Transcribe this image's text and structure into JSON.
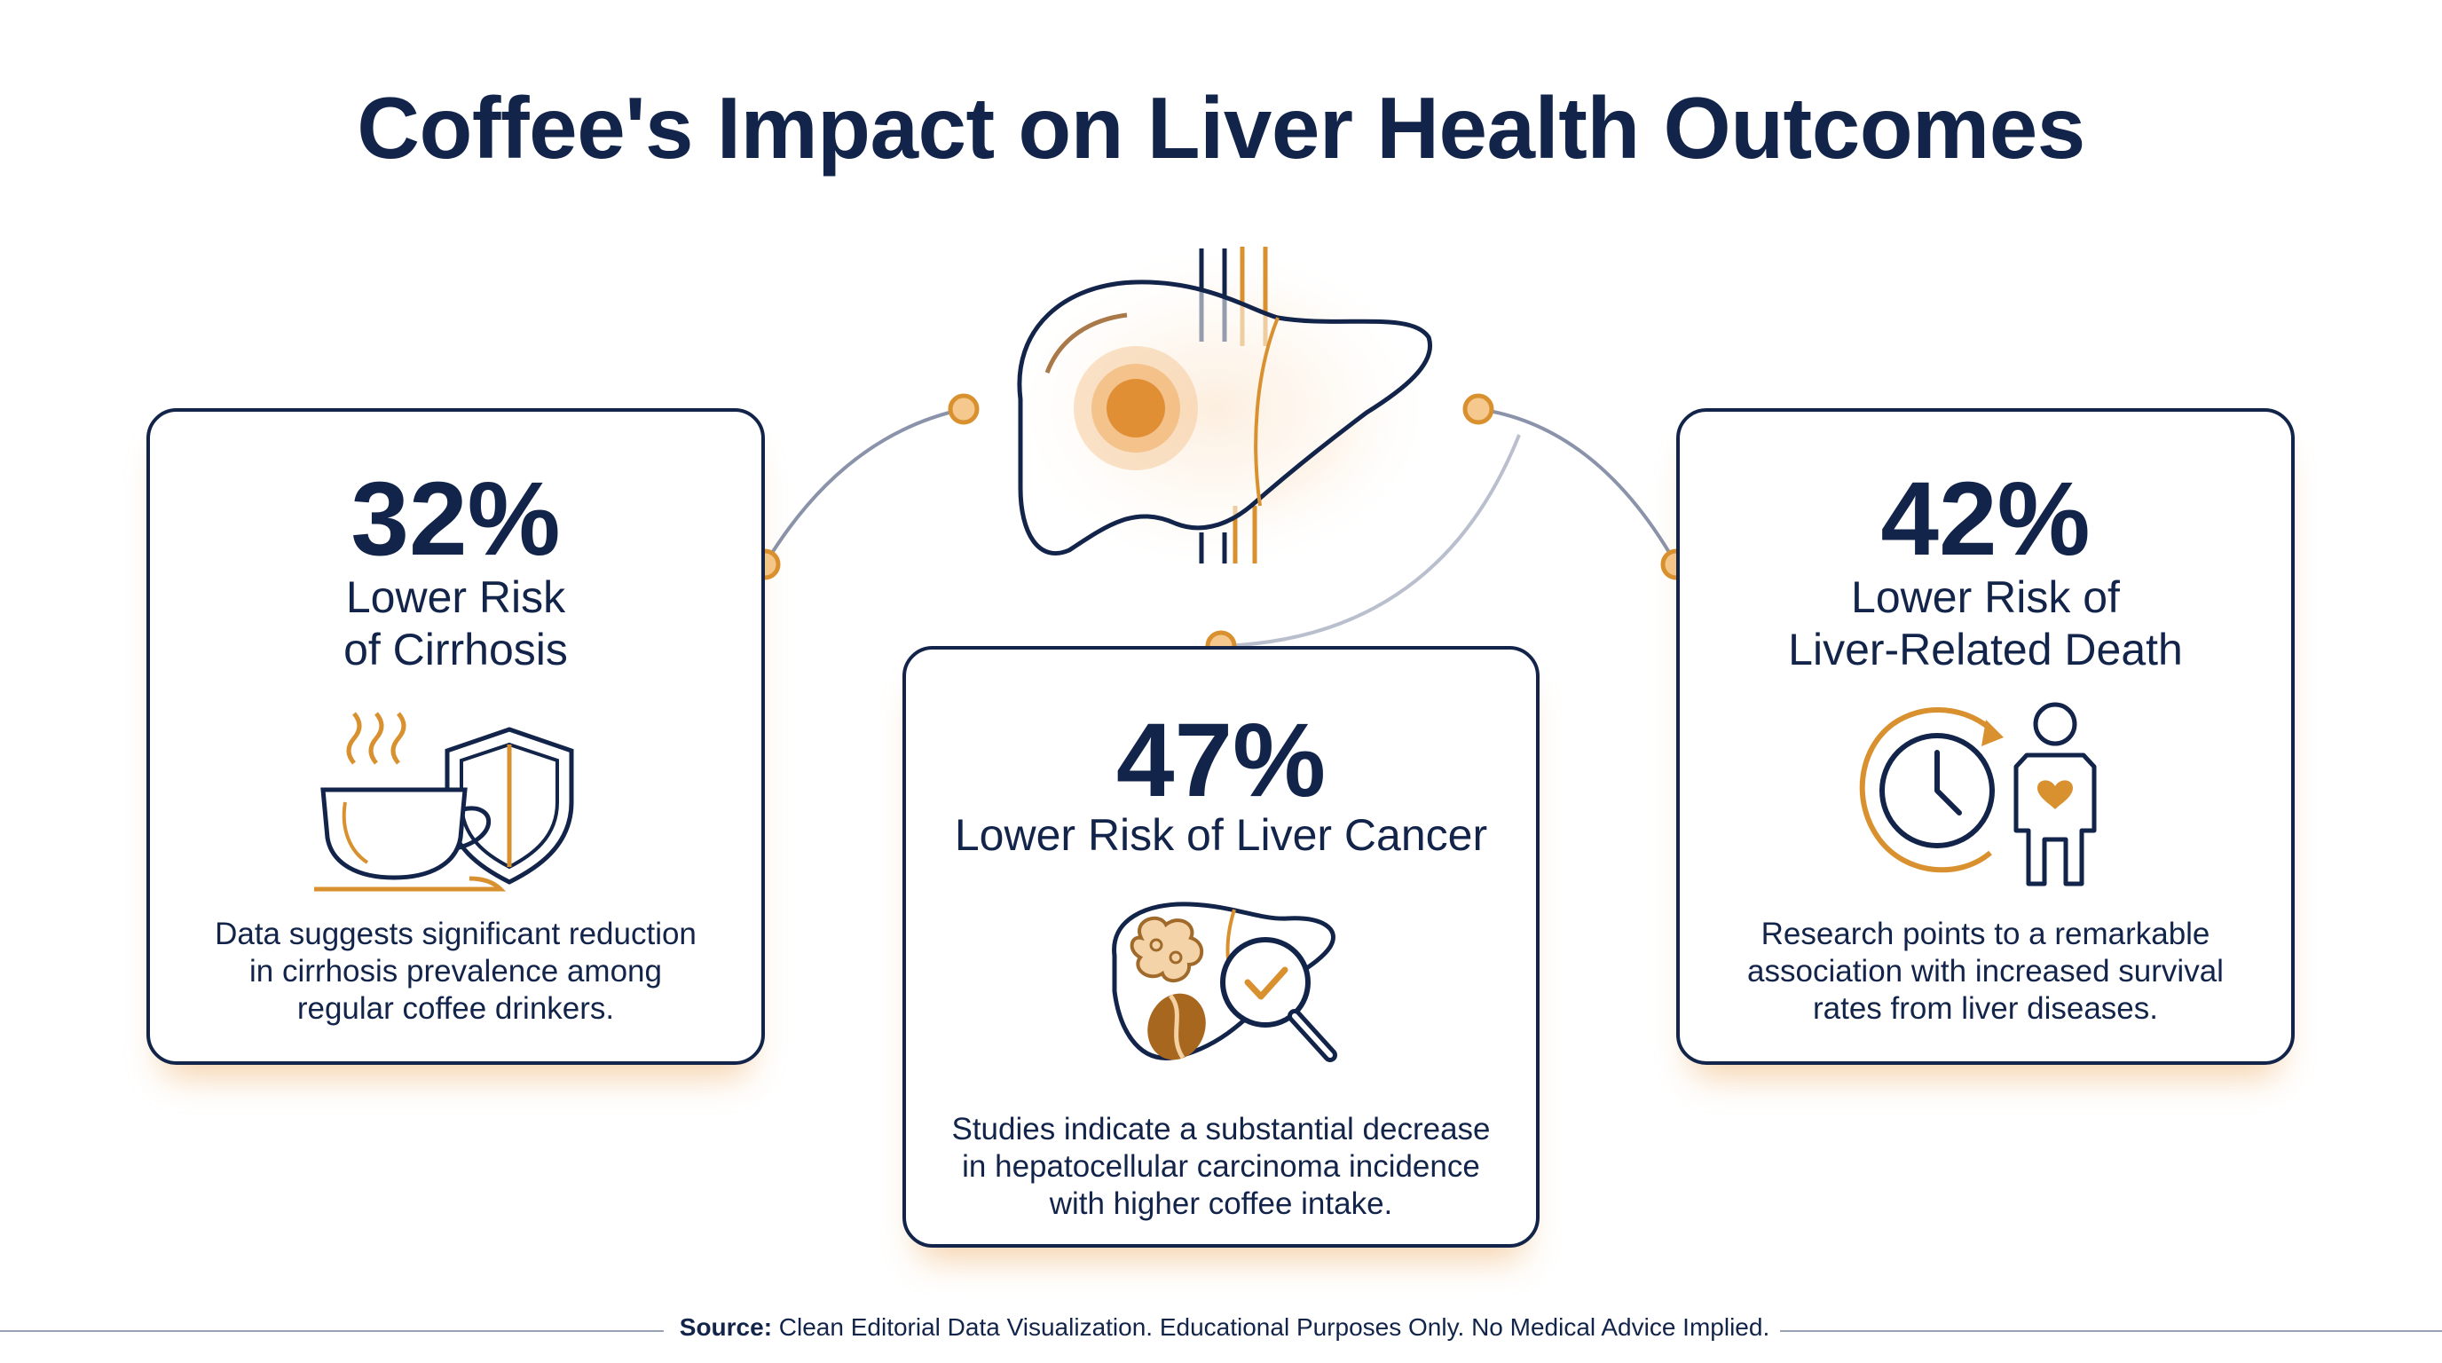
{
  "title": "Coffee's Impact on Liver Health Outcomes",
  "colors": {
    "navy": "#13244a",
    "accent": "#d9902f",
    "connector": "#8a93aa"
  },
  "cards": [
    {
      "stat": "32%",
      "label_line1": "Lower Risk",
      "label_line2": "of Cirrhosis",
      "desc_line1": "Data suggests significant reduction",
      "desc_line2": "in cirrhosis prevalence among",
      "desc_line3": "regular coffee drinkers.",
      "icon": "coffee-cup-shield-icon"
    },
    {
      "stat": "47%",
      "label_line1": "Lower Risk of Liver Cancer",
      "desc_line1": "Studies indicate a substantial decrease",
      "desc_line2": "in hepatocellular carcinoma incidence",
      "desc_line3": "with higher coffee intake.",
      "icon": "liver-magnifier-check-icon"
    },
    {
      "stat": "42%",
      "label_line1": "Lower Risk of",
      "label_line2": "Liver-Related Death",
      "desc_line1": "Research points to a remarkable",
      "desc_line2": "association with increased survival",
      "desc_line3": "rates from liver diseases.",
      "icon": "clock-person-heart-icon"
    }
  ],
  "center_icon": "liver-icon",
  "footer": {
    "source_label": "Source:",
    "source_text": " Clean Editorial Data Visualization. Educational Purposes Only. No Medical Advice Implied."
  }
}
